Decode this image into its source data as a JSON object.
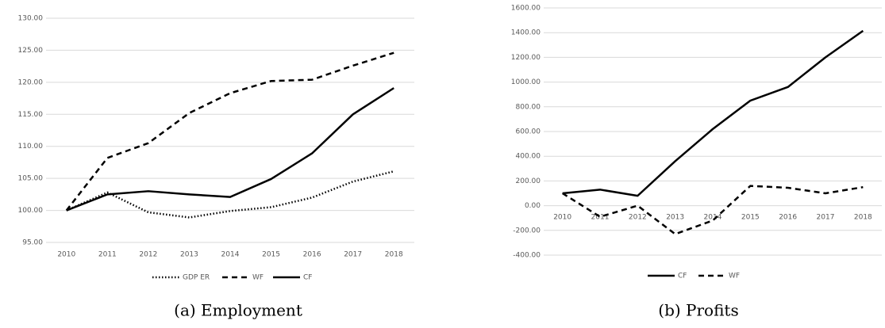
{
  "chart_data": [
    {
      "type": "line",
      "caption": "(a) Employment",
      "categories": [
        "2010",
        "2011",
        "2012",
        "2013",
        "2014",
        "2015",
        "2016",
        "2017",
        "2018"
      ],
      "series": [
        {
          "name": "GDP ER",
          "color": "#000000",
          "dash": "dotted",
          "values": [
            100,
            102.8,
            99.7,
            98.9,
            99.9,
            100.5,
            102.0,
            104.5,
            106.1
          ]
        },
        {
          "name": "WF",
          "color": "#000000",
          "dash": "dashed",
          "values": [
            100,
            108.2,
            110.5,
            115.2,
            118.3,
            120.2,
            120.4,
            122.6,
            124.6
          ]
        },
        {
          "name": "CF",
          "color": "#000000",
          "dash": "solid",
          "values": [
            100,
            102.5,
            103.0,
            102.5,
            102.1,
            104.9,
            108.9,
            115.0,
            119.1
          ]
        }
      ],
      "ylim": [
        95,
        130
      ],
      "yticks": [
        {
          "value": 95,
          "label": "95.00"
        },
        {
          "value": 100,
          "label": "100.00"
        },
        {
          "value": 105,
          "label": "105.00"
        },
        {
          "value": 110,
          "label": "110.00"
        },
        {
          "value": 115,
          "label": "115.00"
        },
        {
          "value": 120,
          "label": "120.00"
        },
        {
          "value": 125,
          "label": "125.00"
        },
        {
          "value": 130,
          "label": "130.00"
        }
      ],
      "grid": true,
      "legend": "bottom"
    },
    {
      "type": "line",
      "caption": "(b) Profits",
      "categories": [
        "2010",
        "2011",
        "2012",
        "2013",
        "2014",
        "2015",
        "2016",
        "2017",
        "2018"
      ],
      "series": [
        {
          "name": "CF",
          "color": "#000000",
          "dash": "solid",
          "values": [
            100,
            130,
            80,
            360,
            620,
            850,
            960,
            1200,
            1415
          ]
        },
        {
          "name": "WF",
          "color": "#000000",
          "dash": "dashed",
          "values": [
            100,
            -90,
            0,
            -230,
            -120,
            160,
            145,
            100,
            150
          ]
        }
      ],
      "ylim": [
        -400,
        1600
      ],
      "yticks": [
        {
          "value": -400,
          "label": "-400.00"
        },
        {
          "value": -200,
          "label": "-200.00"
        },
        {
          "value": 0,
          "label": "0.00"
        },
        {
          "value": 200,
          "label": "200.00"
        },
        {
          "value": 400,
          "label": "400.00"
        },
        {
          "value": 600,
          "label": "600.00"
        },
        {
          "value": 800,
          "label": "800.00"
        },
        {
          "value": 1000,
          "label": "1000.00"
        },
        {
          "value": 1200,
          "label": "1200.00"
        },
        {
          "value": 1400,
          "label": "1400.00"
        },
        {
          "value": 1600,
          "label": "1600.00"
        }
      ],
      "grid": true,
      "legend": "bottom"
    }
  ]
}
